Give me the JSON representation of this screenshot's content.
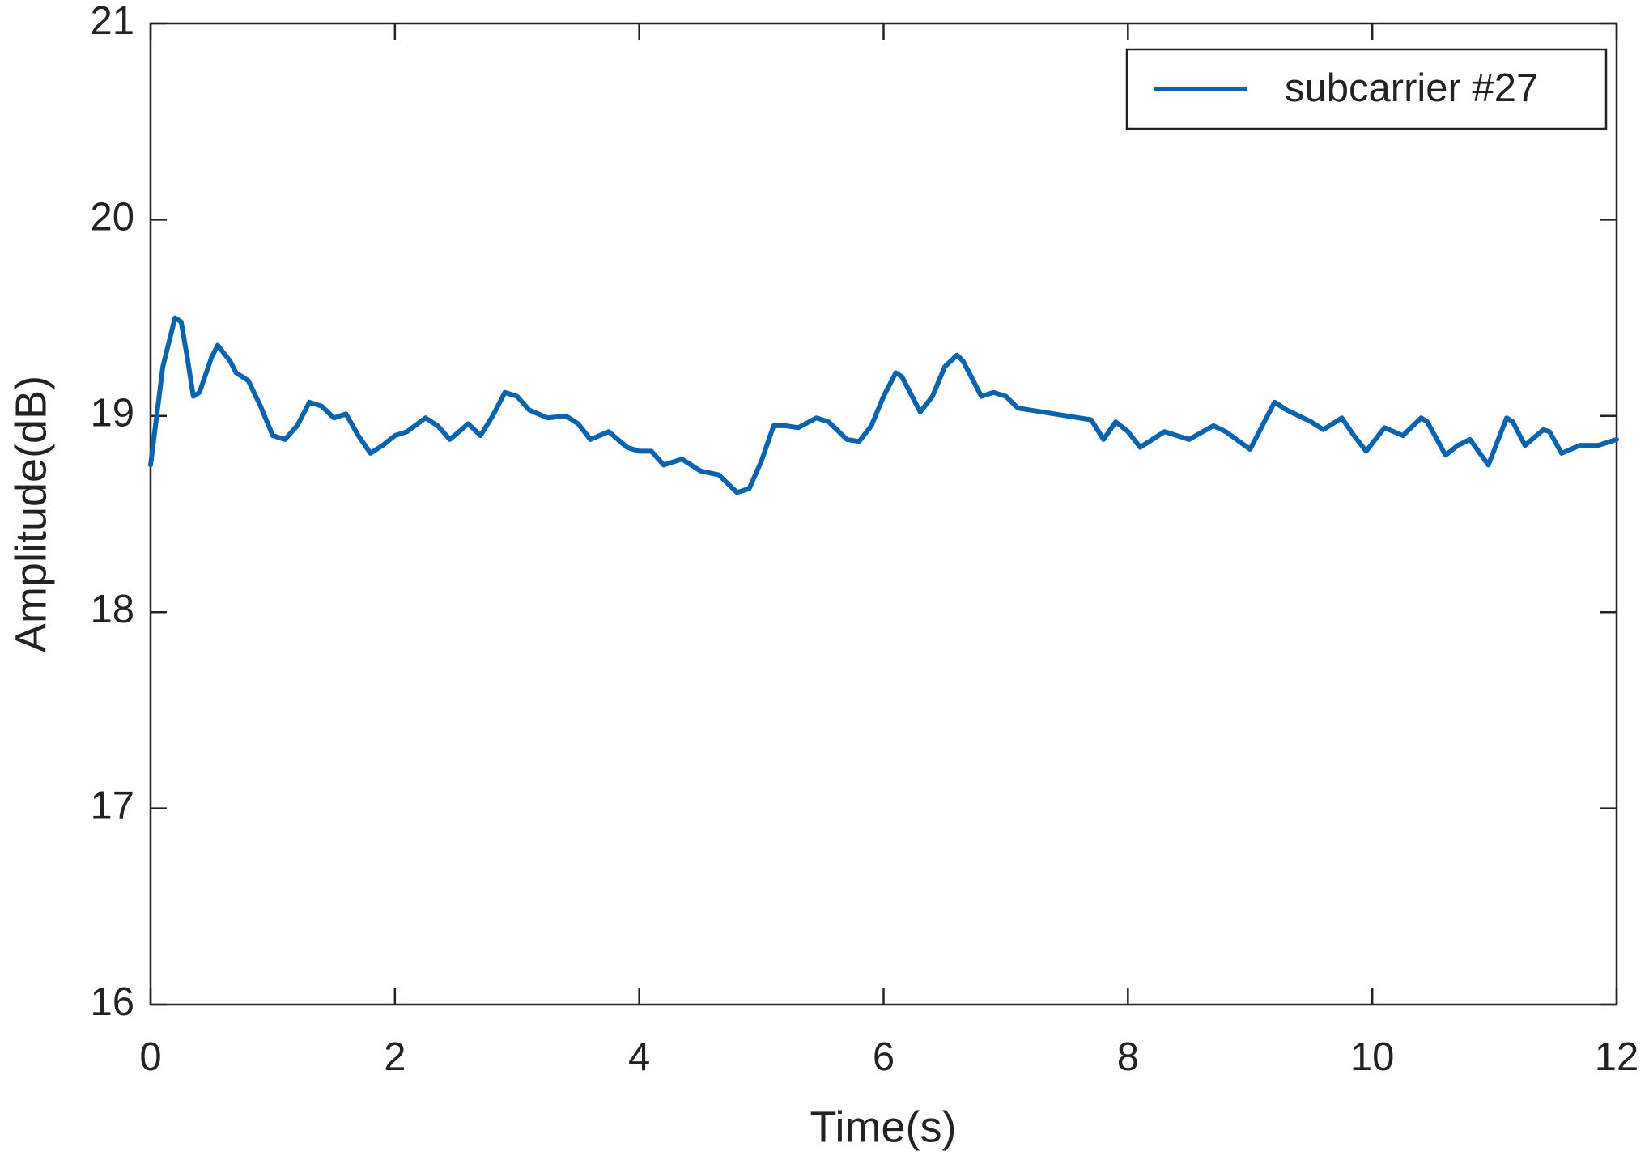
{
  "chart_data": {
    "type": "line",
    "xlabel": "Time(s)",
    "ylabel": "Amplitude(dB)",
    "x": [
      0,
      0.05,
      0.1,
      0.2,
      0.25,
      0.3,
      0.35,
      0.4,
      0.5,
      0.55,
      0.65,
      0.7,
      0.8,
      0.9,
      1.0,
      1.1,
      1.2,
      1.3,
      1.4,
      1.5,
      1.6,
      1.7,
      1.8,
      1.9,
      2.0,
      2.1,
      2.25,
      2.35,
      2.45,
      2.6,
      2.7,
      2.8,
      2.9,
      3.0,
      3.1,
      3.25,
      3.4,
      3.5,
      3.6,
      3.75,
      3.9,
      4.0,
      4.1,
      4.2,
      4.35,
      4.5,
      4.65,
      4.8,
      4.9,
      5.0,
      5.1,
      5.2,
      5.3,
      5.45,
      5.55,
      5.7,
      5.8,
      5.9,
      6.0,
      6.1,
      6.15,
      6.3,
      6.4,
      6.5,
      6.6,
      6.65,
      6.8,
      6.9,
      7.0,
      7.1,
      7.3,
      7.5,
      7.7,
      7.8,
      7.9,
      8.0,
      8.1,
      8.3,
      8.5,
      8.7,
      8.8,
      9.0,
      9.1,
      9.2,
      9.3,
      9.5,
      9.6,
      9.75,
      9.85,
      9.95,
      10.1,
      10.25,
      10.4,
      10.45,
      10.6,
      10.7,
      10.8,
      10.95,
      11.1,
      11.15,
      11.25,
      11.4,
      11.45,
      11.55,
      11.7,
      11.85,
      12.0
    ],
    "series": [
      {
        "name": "subcarrier #27",
        "color": "#0a64ad",
        "values": [
          18.75,
          19.0,
          19.25,
          19.5,
          19.48,
          19.3,
          19.1,
          19.12,
          19.3,
          19.36,
          19.28,
          19.22,
          19.18,
          19.05,
          18.9,
          18.88,
          18.95,
          19.07,
          19.05,
          18.99,
          19.01,
          18.9,
          18.81,
          18.85,
          18.9,
          18.92,
          18.99,
          18.95,
          18.88,
          18.96,
          18.9,
          19.0,
          19.12,
          19.1,
          19.03,
          18.99,
          19.0,
          18.96,
          18.88,
          18.92,
          18.84,
          18.82,
          18.82,
          18.75,
          18.78,
          18.72,
          18.7,
          18.61,
          18.63,
          18.77,
          18.95,
          18.95,
          18.94,
          18.99,
          18.97,
          18.88,
          18.87,
          18.95,
          19.1,
          19.22,
          19.2,
          19.02,
          19.1,
          19.25,
          19.31,
          19.28,
          19.1,
          19.12,
          19.1,
          19.04,
          19.02,
          19.0,
          18.98,
          18.88,
          18.97,
          18.92,
          18.84,
          18.92,
          18.88,
          18.95,
          18.92,
          18.83,
          18.95,
          19.07,
          19.03,
          18.97,
          18.93,
          18.99,
          18.9,
          18.82,
          18.94,
          18.9,
          18.99,
          18.97,
          18.8,
          18.85,
          18.88,
          18.75,
          18.99,
          18.97,
          18.85,
          18.93,
          18.92,
          18.81,
          18.85,
          18.85,
          18.88
        ]
      }
    ],
    "xlim": [
      0,
      12
    ],
    "xticks": [
      0,
      2,
      4,
      6,
      8,
      10,
      12
    ],
    "ylim": [
      16,
      21
    ],
    "yticks": [
      16,
      17,
      18,
      19,
      20,
      21
    ],
    "legend": "upper right"
  }
}
